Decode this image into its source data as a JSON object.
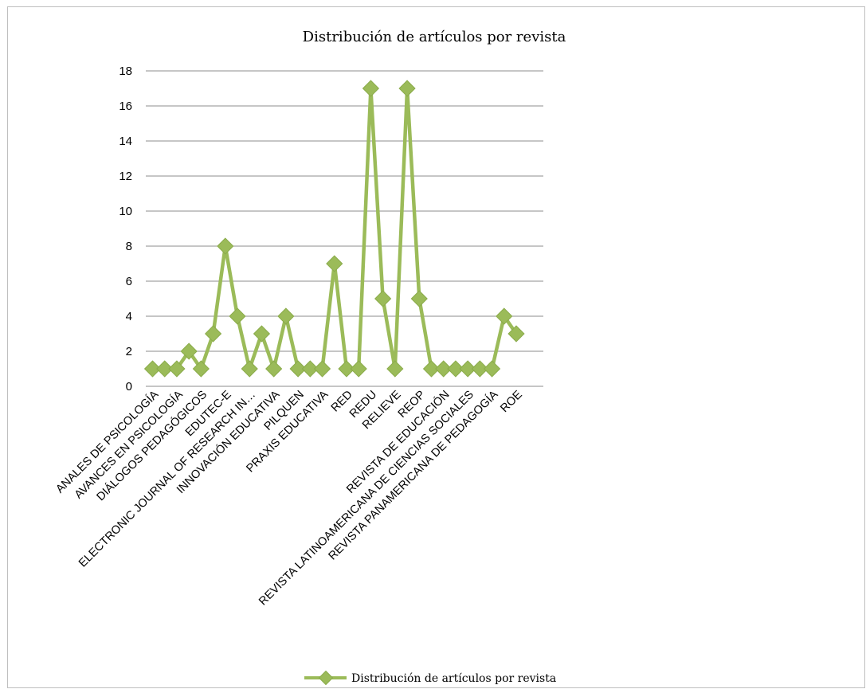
{
  "chart_data": {
    "type": "line",
    "title": "Distribución de artículos por revista",
    "xlabel": "",
    "ylabel": "",
    "ylim": [
      0,
      18
    ],
    "y_ticks": [
      0,
      2,
      4,
      6,
      8,
      10,
      12,
      14,
      16,
      18
    ],
    "grid": true,
    "legend_position": "bottom",
    "categories": [
      "ANALES DE PSICOLOGÍA",
      "",
      "AVANCES EN PSICOLOGÍA",
      "",
      "DIÁLOGOS PEDAGÓGICOS",
      "",
      "EDUTEC-E",
      "",
      "ELECTRONIC JOURNAL OF RESEARCH IN…",
      "",
      "INNOVACIÓN EDUCATIVA",
      "",
      "PILQUEN",
      "",
      "PRAXIS EDUCATIVA",
      "",
      "RED",
      "",
      "REDU",
      "",
      "RELIEVE",
      "",
      "REOP",
      "",
      "REVISTA DE EDUCACIÓN",
      "",
      "REVISTA LATINOAMERICANA DE CIENCIAS SOCIALES",
      "",
      "REVISTA PANAMERICANA DE PEDAGOGÍA",
      "",
      "ROE"
    ],
    "series": [
      {
        "name": "Distribución de artículos por revista",
        "color": "#9bbb59",
        "values": [
          1,
          1,
          1,
          2,
          1,
          3,
          8,
          4,
          1,
          3,
          1,
          4,
          1,
          1,
          1,
          7,
          1,
          1,
          17,
          5,
          1,
          17,
          5,
          1,
          1,
          1,
          1,
          1,
          1,
          4,
          3
        ]
      }
    ]
  }
}
